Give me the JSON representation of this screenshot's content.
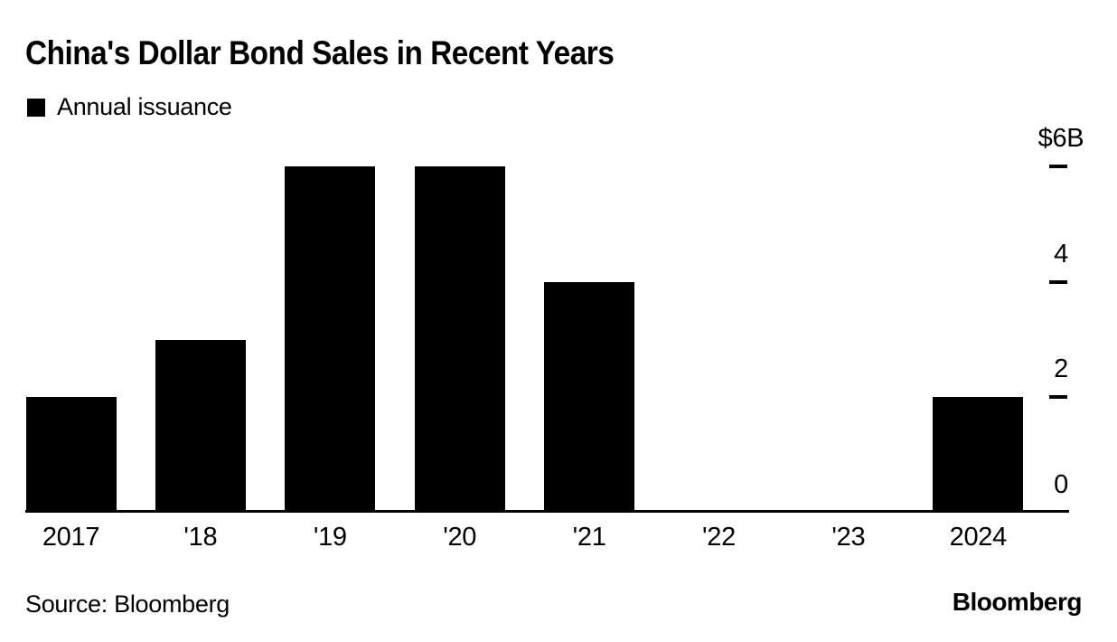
{
  "chart_data": {
    "type": "bar",
    "title": "China's Dollar Bond Sales in Recent Years",
    "legend": [
      {
        "label": "Annual issuance",
        "color": "#000000"
      }
    ],
    "legend_position": "top-left",
    "categories": [
      "2017",
      "'18",
      "'19",
      "'20",
      "'21",
      "'22",
      "'23",
      "2024"
    ],
    "series": [
      {
        "name": "Annual issuance",
        "values": [
          2,
          3,
          6,
          6,
          4,
          0,
          0,
          2
        ]
      }
    ],
    "xlabel": "",
    "ylabel": "",
    "ylim": [
      0,
      6
    ],
    "yticks": [
      {
        "value": 0,
        "label": "0"
      },
      {
        "value": 2,
        "label": "2"
      },
      {
        "value": 4,
        "label": "4"
      },
      {
        "value": 6,
        "label": "$6B"
      }
    ],
    "ytick_side": "right",
    "grid": false,
    "bar_color": "#000000",
    "axis_color": "#000000",
    "background": "#ffffff"
  },
  "footer": {
    "source": "Source: Bloomberg",
    "logo": "Bloomberg"
  }
}
